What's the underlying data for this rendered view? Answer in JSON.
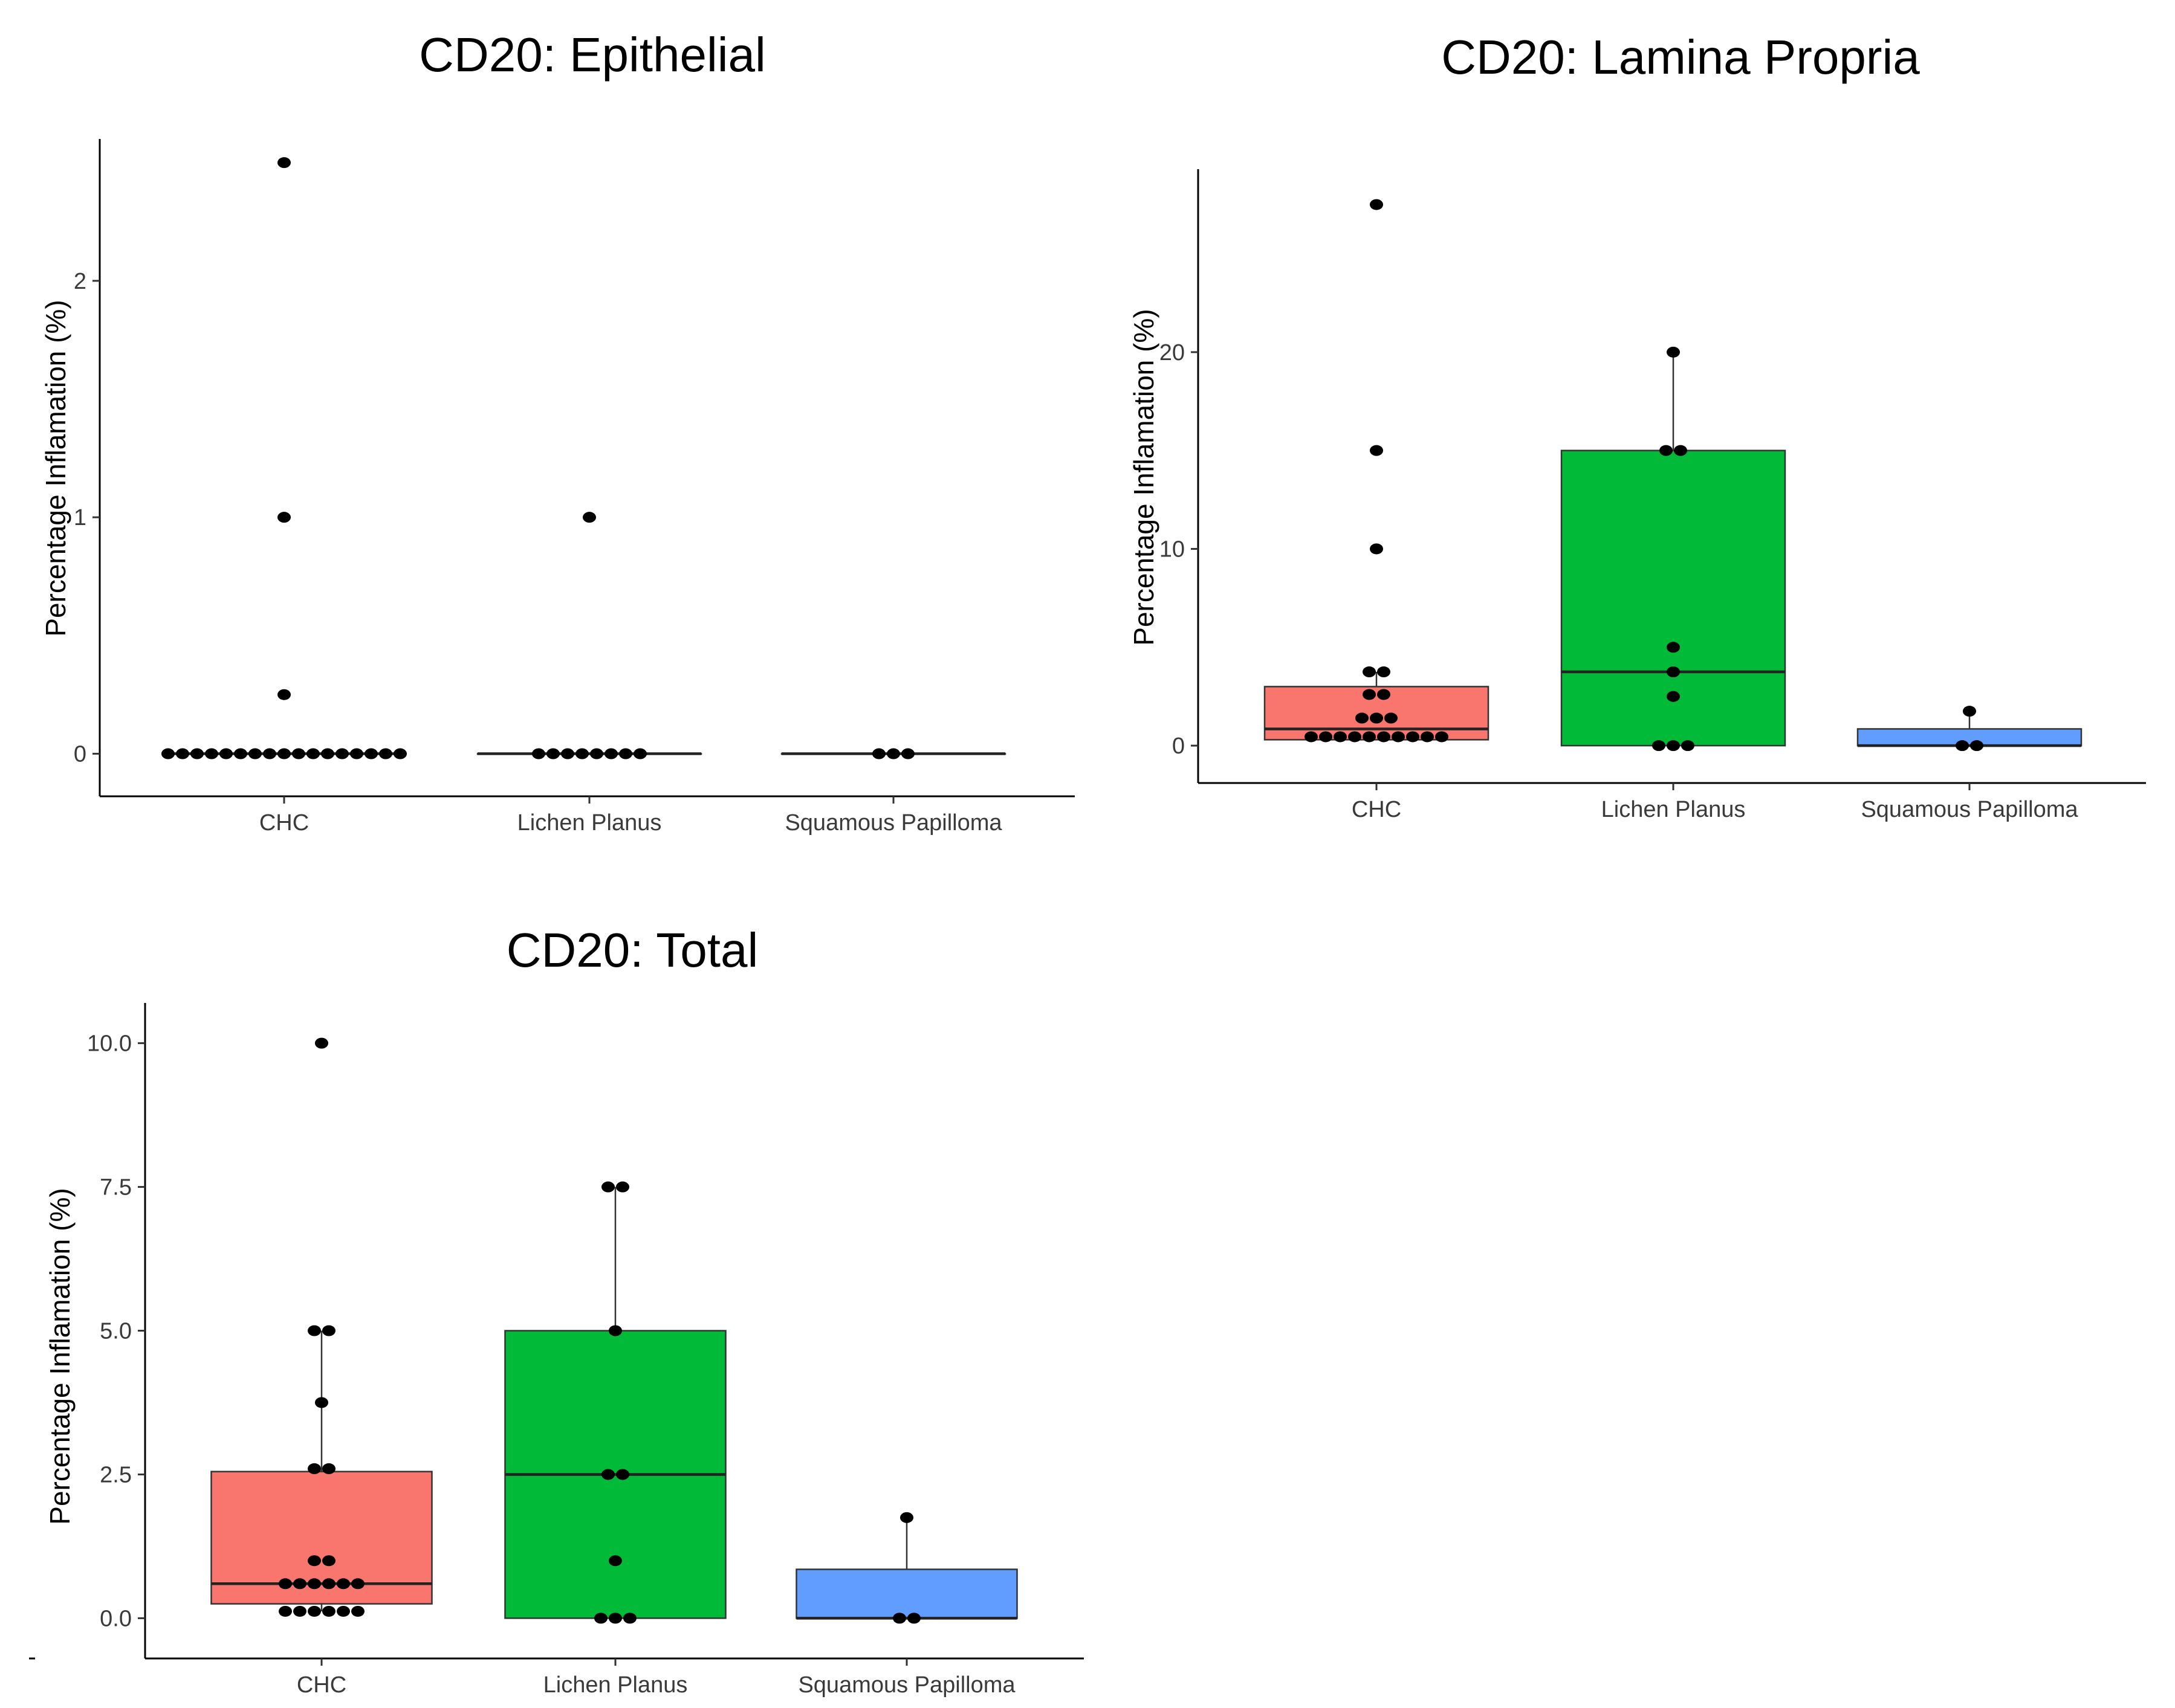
{
  "chart_data": [
    {
      "type": "box",
      "title": "CD20: Epithelial",
      "ylabel": "Percentage Inflamation (%)",
      "xlabel": "",
      "categories": [
        "CHC",
        "Lichen Planus",
        "Squamous Papilloma"
      ],
      "ylim": [
        -0.18,
        2.6
      ],
      "yticks": [
        0,
        1,
        2
      ],
      "ytick_labels": [
        "0",
        "1",
        "2"
      ],
      "grid": false,
      "legend": "none",
      "colors": [
        "#F8766D",
        "#00BA38",
        "#619CFF"
      ],
      "boxes": [
        {
          "q1": 0,
          "median": 0,
          "q3": 0,
          "whisker_low": 0,
          "whisker_high": 0
        },
        {
          "q1": 0,
          "median": 0,
          "q3": 0,
          "whisker_low": 0,
          "whisker_high": 0
        },
        {
          "q1": 0,
          "median": 0,
          "q3": 0,
          "whisker_low": 0,
          "whisker_high": 0
        }
      ],
      "points": [
        [
          2.5,
          1,
          0.25,
          0,
          0,
          0,
          0,
          0,
          0,
          0,
          0,
          0,
          0,
          0,
          0,
          0,
          0,
          0,
          0,
          0
        ],
        [
          1,
          0,
          0,
          0,
          0,
          0,
          0,
          0,
          0
        ],
        [
          0,
          0,
          0
        ]
      ]
    },
    {
      "type": "box",
      "title": "CD20: Lamina Propria",
      "ylabel": "Percentage Inflamation (%)",
      "xlabel": "",
      "categories": [
        "CHC",
        "Lichen Planus",
        "Squamous Papilloma"
      ],
      "ylim": [
        -1.9,
        29.3
      ],
      "yticks": [
        0,
        10,
        20
      ],
      "ytick_labels": [
        "0",
        "10",
        "20"
      ],
      "grid": false,
      "legend": "none",
      "colors": [
        "#F8766D",
        "#00BA38",
        "#619CFF"
      ],
      "boxes": [
        {
          "q1": 0.3,
          "median": 0.85,
          "q3": 3.0,
          "whisker_low": 0.3,
          "whisker_high": 3.75
        },
        {
          "q1": 0,
          "median": 3.75,
          "q3": 15,
          "whisker_low": 0,
          "whisker_high": 20
        },
        {
          "q1": 0,
          "median": 0,
          "q3": 0.85,
          "whisker_low": 0,
          "whisker_high": 1.75
        }
      ],
      "points": [
        [
          27.5,
          15,
          10,
          3.75,
          3.75,
          2.6,
          2.6,
          1.4,
          1.4,
          1.4,
          0.45,
          0.45,
          0.45,
          0.45,
          0.45,
          0.45,
          0.45,
          0.45,
          0.45,
          0.45
        ],
        [
          20,
          15,
          15,
          5,
          3.75,
          2.5,
          0,
          0,
          0
        ],
        [
          1.75,
          0,
          0
        ]
      ]
    },
    {
      "type": "box",
      "title": "CD20: Total",
      "ylabel": "Percentage Inflamation (%)",
      "xlabel": "",
      "categories": [
        "CHC",
        "Lichen Planus",
        "Squamous Papilloma"
      ],
      "ylim": [
        -0.7,
        10.7
      ],
      "yticks": [
        0,
        2.5,
        5,
        7.5,
        10
      ],
      "ytick_labels": [
        "0.0",
        "2.5",
        "5.0",
        "7.5",
        "10.0"
      ],
      "grid": false,
      "legend": "none",
      "colors": [
        "#F8766D",
        "#00BA38",
        "#619CFF"
      ],
      "boxes": [
        {
          "q1": 0.25,
          "median": 0.6,
          "q3": 2.55,
          "whisker_low": 0.12,
          "whisker_high": 5
        },
        {
          "q1": 0,
          "median": 2.5,
          "q3": 5,
          "whisker_low": 0,
          "whisker_high": 7.5
        },
        {
          "q1": 0,
          "median": 0,
          "q3": 0.85,
          "whisker_low": 0,
          "whisker_high": 1.75
        }
      ],
      "points": [
        [
          10,
          5,
          5,
          3.75,
          2.6,
          2.6,
          1,
          1,
          0.6,
          0.6,
          0.6,
          0.6,
          0.6,
          0.6,
          0.12,
          0.12,
          0.12,
          0.12,
          0.12,
          0.12
        ],
        [
          7.5,
          7.5,
          5,
          2.5,
          2.5,
          1,
          0,
          0,
          0
        ],
        [
          1.75,
          0,
          0
        ]
      ]
    }
  ]
}
